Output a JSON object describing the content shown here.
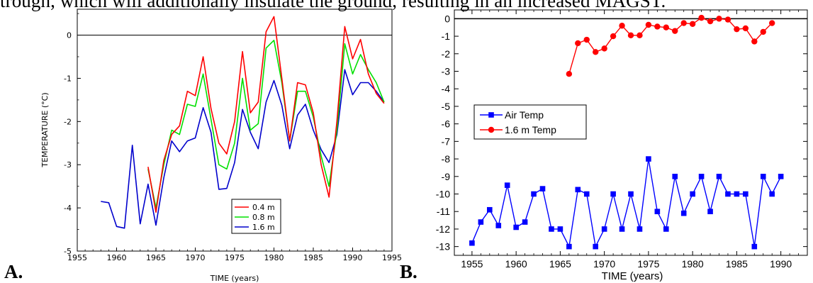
{
  "caption_fragment": "trough, which will additionally insulate the ground, resulting in an increased MAGST.",
  "panel_labels": [
    "A.",
    "B."
  ],
  "chart_data": [
    {
      "type": "line",
      "ylabel": "TEMPERATURE (°C)",
      "xlabel": "TIME (years)",
      "xlim": [
        1955,
        1995
      ],
      "ylim": [
        -5,
        0.6
      ],
      "xticks": [
        "1955",
        "1960",
        "1965",
        "1970",
        "1975",
        "1980",
        "1985",
        "1990",
        "1995"
      ],
      "yticks": [
        "-5",
        "-4",
        "-3",
        "-2",
        "-1",
        "0"
      ],
      "zero_line": true,
      "legend_position": "bottom-right",
      "series": [
        {
          "name": "0.4 m",
          "color": "#ff0000",
          "x": [
            1964,
            1965,
            1966,
            1967,
            1968,
            1969,
            1970,
            1971,
            1972,
            1973,
            1974,
            1975,
            1976,
            1977,
            1978,
            1979,
            1980,
            1981,
            1982,
            1983,
            1984,
            1985,
            1986,
            1987,
            1988,
            1989,
            1990,
            1991,
            1992,
            1993,
            1994
          ],
          "y": [
            -3.05,
            -4.1,
            -2.9,
            -2.3,
            -2.1,
            -1.3,
            -1.4,
            -0.5,
            -1.7,
            -2.5,
            -2.75,
            -2.0,
            -0.38,
            -1.8,
            -1.55,
            0.08,
            0.43,
            -1.0,
            -2.45,
            -1.1,
            -1.15,
            -1.8,
            -3.0,
            -3.75,
            -2.0,
            0.2,
            -0.55,
            -0.1,
            -0.9,
            -1.35,
            -1.58
          ]
        },
        {
          "name": "0.8 m",
          "color": "#00e000",
          "x": [
            1964,
            1965,
            1966,
            1967,
            1968,
            1969,
            1970,
            1971,
            1972,
            1973,
            1974,
            1975,
            1976,
            1977,
            1978,
            1979,
            1980,
            1981,
            1982,
            1983,
            1984,
            1985,
            1986,
            1987,
            1988,
            1989,
            1990,
            1991,
            1992,
            1993,
            1994
          ],
          "y": [
            -3.1,
            -4.0,
            -3.0,
            -2.2,
            -2.3,
            -1.6,
            -1.65,
            -0.9,
            -1.95,
            -3.0,
            -3.1,
            -2.5,
            -1.0,
            -2.2,
            -2.05,
            -0.3,
            -0.12,
            -1.1,
            -2.45,
            -1.3,
            -1.3,
            -1.9,
            -2.8,
            -3.5,
            -2.2,
            -0.2,
            -0.9,
            -0.45,
            -0.8,
            -1.1,
            -1.55
          ]
        },
        {
          "name": "1.6 m",
          "color": "#0000cc",
          "x": [
            1958,
            1959,
            1960,
            1961,
            1962,
            1963,
            1964,
            1965,
            1966,
            1967,
            1968,
            1969,
            1970,
            1971,
            1972,
            1973,
            1974,
            1975,
            1976,
            1977,
            1978,
            1979,
            1980,
            1981,
            1982,
            1983,
            1984,
            1985,
            1986,
            1987,
            1988,
            1989,
            1990,
            1991,
            1992,
            1993,
            1994
          ],
          "y": [
            -3.85,
            -3.88,
            -4.43,
            -4.47,
            -2.55,
            -4.37,
            -3.45,
            -4.4,
            -3.3,
            -2.45,
            -2.7,
            -2.45,
            -2.38,
            -1.68,
            -2.25,
            -3.57,
            -3.55,
            -2.95,
            -1.72,
            -2.25,
            -2.63,
            -1.55,
            -1.05,
            -1.62,
            -2.63,
            -1.85,
            -1.6,
            -2.2,
            -2.65,
            -2.95,
            -2.3,
            -0.8,
            -1.38,
            -1.1,
            -1.1,
            -1.3,
            -1.55
          ]
        }
      ]
    },
    {
      "type": "line",
      "xlabel": "TIME (years)",
      "ylabel": "",
      "xlim": [
        1953,
        1993
      ],
      "ylim": [
        -13.5,
        0.5
      ],
      "xticks": [
        "1955",
        "1960",
        "1965",
        "1970",
        "1975",
        "1980",
        "1985",
        "1990"
      ],
      "yticks": [
        "0",
        "-1",
        "-2",
        "-3",
        "-4",
        "-5",
        "-6",
        "-7",
        "-8",
        "-9",
        "-10",
        "-11",
        "-12",
        "-13"
      ],
      "zero_line": true,
      "legend_position": "middle-left",
      "series": [
        {
          "name": "Air Temp",
          "color": "#0000ff",
          "marker": "square",
          "x": [
            1955,
            1956,
            1957,
            1958,
            1959,
            1960,
            1961,
            1962,
            1963,
            1964,
            1965,
            1966,
            1967,
            1968,
            1969,
            1970,
            1971,
            1972,
            1973,
            1974,
            1975,
            1976,
            1977,
            1978,
            1979,
            1980,
            1981,
            1982,
            1983,
            1984,
            1985,
            1986,
            1987,
            1988,
            1989,
            1990
          ],
          "y": [
            -12.8,
            -11.6,
            -10.9,
            -11.8,
            -9.5,
            -11.9,
            -11.6,
            -10.0,
            -9.7,
            -12.0,
            -12.0,
            -13.0,
            -9.75,
            -10.0,
            -13.0,
            -12.0,
            -10.0,
            -12.0,
            -10.0,
            -12.0,
            -8.0,
            -11.0,
            -12.0,
            -9.0,
            -11.1,
            -10.0,
            -9.0,
            -11.0,
            -9.0,
            -10.0,
            -10.0,
            -10.0,
            -13.0,
            -9.0,
            -10.0,
            -9.0
          ]
        },
        {
          "name": "1.6 m Temp",
          "color": "#ff0000",
          "marker": "circle",
          "x": [
            1966,
            1967,
            1968,
            1969,
            1970,
            1971,
            1972,
            1973,
            1974,
            1975,
            1976,
            1977,
            1978,
            1979,
            1980,
            1981,
            1982,
            1983,
            1984,
            1985,
            1986,
            1987,
            1988,
            1989
          ],
          "y": [
            -3.15,
            -1.4,
            -1.2,
            -1.9,
            -1.7,
            -1.0,
            -0.4,
            -0.95,
            -0.95,
            -0.35,
            -0.45,
            -0.5,
            -0.7,
            -0.25,
            -0.3,
            0.05,
            -0.15,
            0.0,
            -0.05,
            -0.6,
            -0.55,
            -1.3,
            -0.75,
            -0.25
          ]
        }
      ]
    }
  ]
}
